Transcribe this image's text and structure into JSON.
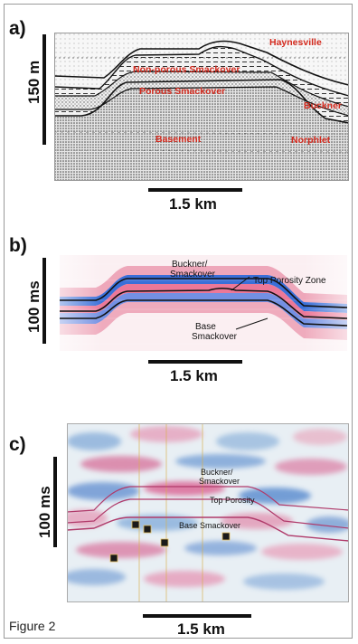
{
  "panels": [
    {
      "letter": "a)",
      "vertical_scale": "150 m",
      "horizontal_scale": "1.5 km",
      "labels": {
        "haynesville": "Haynesville",
        "non_porous": "Non-porous Smackover",
        "porous": "Porous Smackover",
        "buckner": "Buckner",
        "basement": "Basement",
        "norphlet": "Norphlet"
      },
      "label_color": "#d42a1e"
    },
    {
      "letter": "b)",
      "vertical_scale": "100 ms",
      "horizontal_scale": "1.5 km",
      "labels": {
        "buckner_1": "Buckner/",
        "buckner_2": "Smackover",
        "top_porosity": "Top Porosity Zone",
        "base_1": "Base",
        "base_2": "Smackover"
      }
    },
    {
      "letter": "c)",
      "vertical_scale": "100 ms",
      "horizontal_scale": "1.5 km",
      "labels": {
        "buckner_1": "Buckner/",
        "buckner_2": "Smackover",
        "top_porosity": "Top Porosity",
        "base": "Base Smackover"
      }
    }
  ],
  "caption": "Figure 2"
}
